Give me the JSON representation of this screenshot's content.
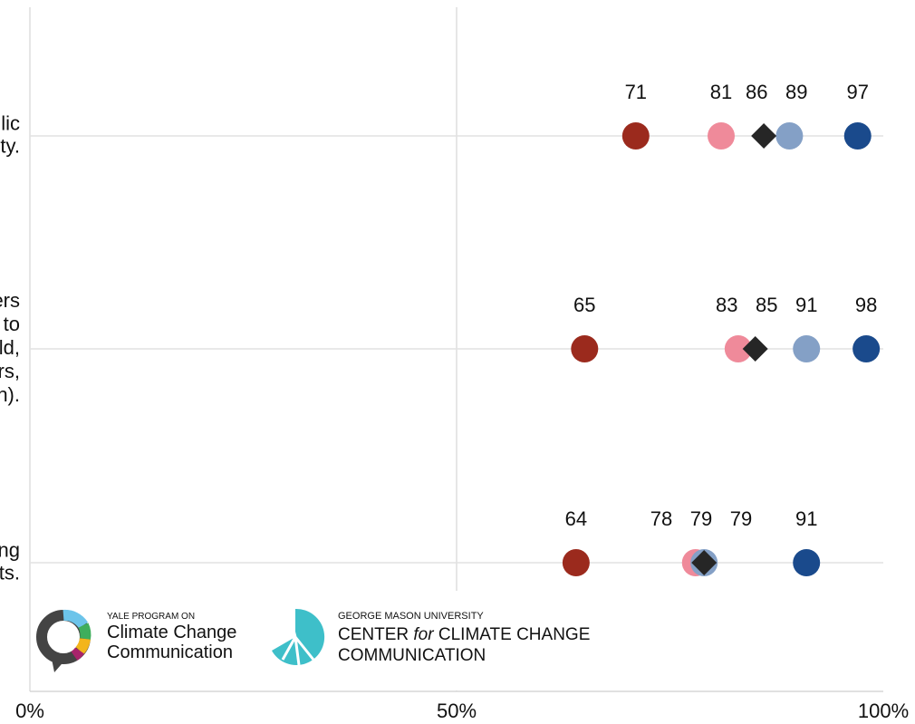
{
  "chart_data": {
    "type": "dot",
    "categories": [
      [
        "lic",
        "ty."
      ],
      [
        "ers",
        "to",
        "ld,",
        "rs,",
        "n)."
      ],
      [
        "ng",
        "ts."
      ]
    ],
    "series": [
      {
        "color": "#9b2a1d",
        "shape": "circle",
        "values": [
          71,
          65,
          64
        ]
      },
      {
        "color": "#ef8a9a",
        "shape": "circle",
        "values": [
          81,
          83,
          78
        ]
      },
      {
        "color": "#84a0c6",
        "shape": "circle",
        "values": [
          89,
          91,
          79
        ]
      },
      {
        "color": "#1a4a8c",
        "shape": "circle",
        "values": [
          97,
          98,
          91
        ]
      },
      {
        "color": "#262626",
        "shape": "diamond",
        "values": [
          86,
          85,
          79
        ]
      }
    ],
    "xlim": [
      0,
      100
    ],
    "xticks": [
      {
        "value": 0,
        "label": "0%"
      },
      {
        "value": 50,
        "label": "50%"
      },
      {
        "value": 100,
        "label": "100%"
      }
    ],
    "grid": true
  },
  "logos": {
    "yale_small": "YALE PROGRAM ON",
    "yale_line1": "Climate Change",
    "yale_line2": "Communication",
    "gmu_small": "GEORGE MASON UNIVERSITY",
    "gmu_line1_a": "CENTER",
    "gmu_line1_b": "for",
    "gmu_line1_c": "CLIMATE CHANGE",
    "gmu_line2": "COMMUNICATION"
  }
}
